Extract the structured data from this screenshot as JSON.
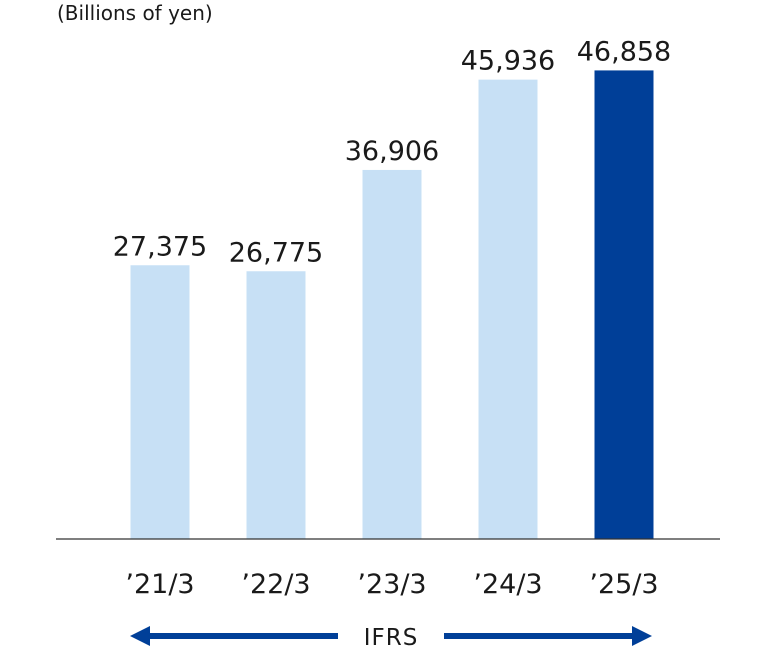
{
  "unit_label": "(Billions of yen)",
  "chart_data": {
    "type": "bar",
    "categories": [
      "’21/3",
      "’22/3",
      "’23/3",
      "’24/3",
      "’25/3"
    ],
    "values": [
      27375,
      26775,
      36906,
      45936,
      46858
    ],
    "value_labels": [
      "27,375",
      "26,775",
      "36,906",
      "45,936",
      "46,858"
    ],
    "ylim": [
      0,
      50000
    ],
    "grid": false,
    "legend": "none",
    "bar_colors": [
      "#c7e0f5",
      "#c7e0f5",
      "#c7e0f5",
      "#c7e0f5",
      "#003f98"
    ]
  },
  "standard_label": "IFRS",
  "colors": {
    "arrow": "#003f98",
    "axis": "#333333",
    "text": "#1a1a1a"
  }
}
